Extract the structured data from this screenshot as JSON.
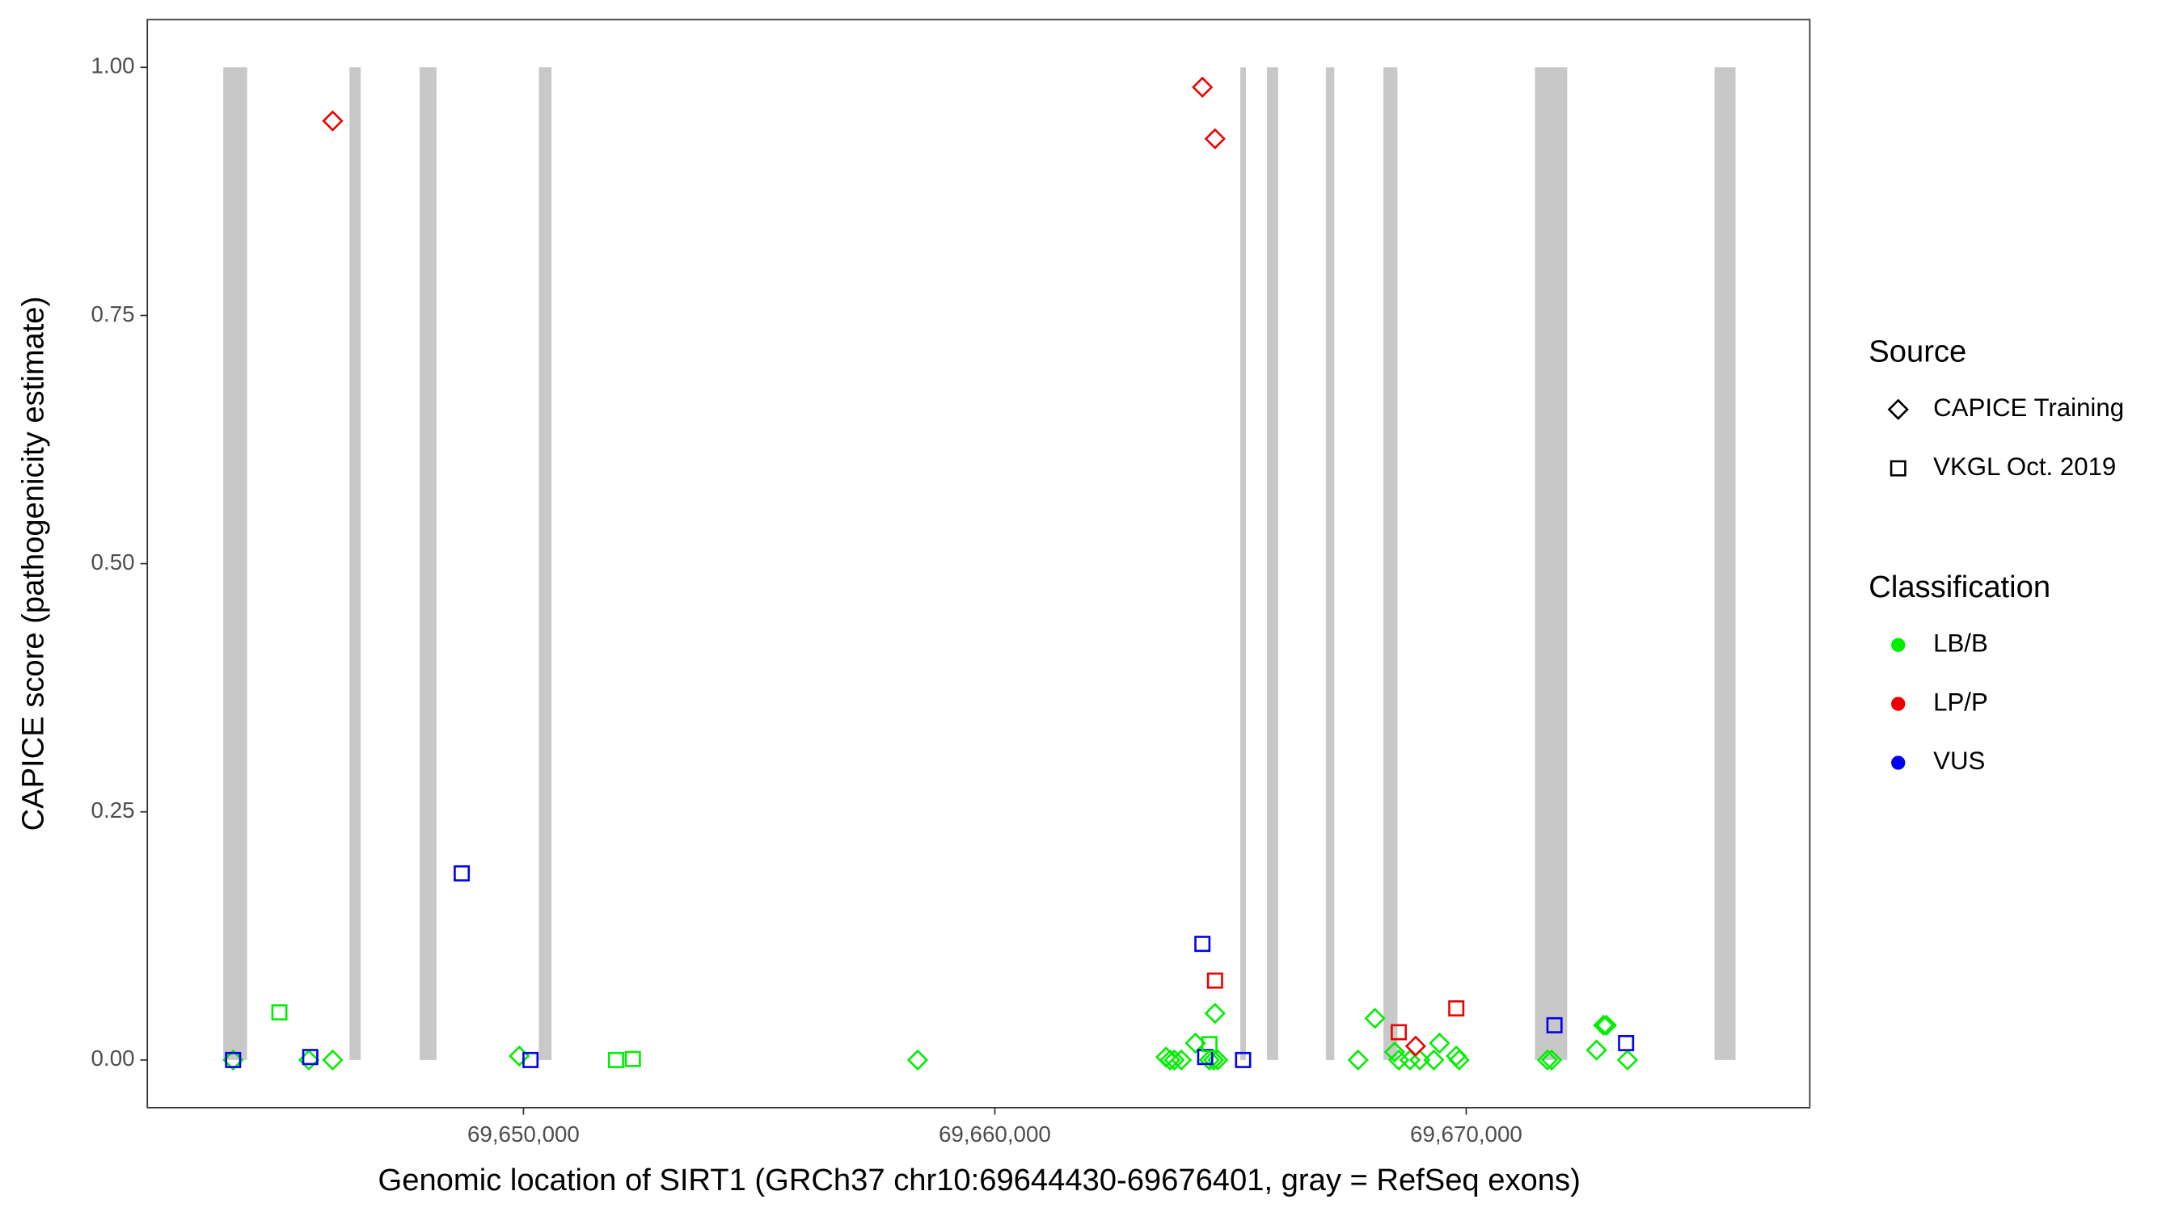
{
  "chart_data": {
    "type": "scatter",
    "x_label": "Genomic location of SIRT1 (GRCh37 chr10:69644430-69676401, gray = RefSeq exons)",
    "y_label": "CAPICE score (pathogenicity estimate)",
    "xlim": [
      69642020,
      69677290
    ],
    "ylim": [
      -0.048,
      1.048
    ],
    "xticks": [
      {
        "value": 69650000,
        "label": "69,650,000"
      },
      {
        "value": 69660000,
        "label": "69,660,000"
      },
      {
        "value": 69670000,
        "label": "69,670,000"
      }
    ],
    "yticks": [
      {
        "value": 0,
        "label": "0.00"
      },
      {
        "value": 0.25,
        "label": "0.25"
      },
      {
        "value": 0.5,
        "label": "0.50"
      },
      {
        "value": 0.75,
        "label": "0.75"
      },
      {
        "value": 1,
        "label": "1.00"
      }
    ],
    "grid": false,
    "exon_color": "#c8c8c8",
    "exons": [
      {
        "start": 69643631,
        "end": 69644137
      },
      {
        "start": 69646310,
        "end": 69646548
      },
      {
        "start": 69647798,
        "end": 69648155
      },
      {
        "start": 69650327,
        "end": 69650595
      },
      {
        "start": 69665208,
        "end": 69665327
      },
      {
        "start": 69665774,
        "end": 69666012
      },
      {
        "start": 69667024,
        "end": 69667202
      },
      {
        "start": 69668244,
        "end": 69668542
      },
      {
        "start": 69671458,
        "end": 69672143
      },
      {
        "start": 69675268,
        "end": 69675714
      }
    ],
    "source_legend": {
      "title": "Source",
      "items": [
        {
          "name": "CAPICE Training",
          "shape": "diamond"
        },
        {
          "name": "VKGL Oct. 2019",
          "shape": "square"
        }
      ]
    },
    "classification_legend": {
      "title": "Classification",
      "items": [
        {
          "name": "LB/B",
          "color": "#00ee00"
        },
        {
          "name": "LP/P",
          "color": "#ee0000"
        },
        {
          "name": "VUS",
          "color": "#0000ee"
        }
      ]
    },
    "series": [
      {
        "source": "CAPICE Training",
        "classification": "LB/B",
        "x": [
          69643840,
          69645447,
          69645953,
          69649911,
          69658363,
          69663630,
          69663719,
          69663808,
          69663957,
          69664255,
          69664553,
          69664642,
          69664672,
          69664731,
          69667707,
          69668064,
          69668481,
          69668570,
          69668808,
          69669017,
          69669314,
          69669433,
          69669790,
          69669850,
          69671724,
          69671813,
          69672766,
          69672915,
          69672975,
          69673422
        ],
        "values": [
          0,
          0,
          0,
          0.004,
          0,
          0.003,
          0,
          0,
          0,
          0.017,
          0,
          0,
          0.047,
          0,
          0,
          0.042,
          0.008,
          0,
          0,
          0,
          0,
          0.017,
          0.004,
          0,
          0,
          0,
          0.01,
          0.035,
          0.035,
          0
        ]
      },
      {
        "source": "CAPICE Training",
        "classification": "LP/P",
        "x": [
          69645953,
          69664404,
          69664672,
          69668927
        ],
        "values": [
          0.946,
          0.98,
          0.928,
          0.014
        ]
      },
      {
        "source": "VKGL Oct. 2019",
        "classification": "VUS",
        "x": [
          69643840,
          69645477,
          69648691,
          69650149,
          69664404,
          69664463,
          69665267,
          69671873,
          69673392
        ],
        "values": [
          0,
          0.003,
          0.188,
          0,
          0.117,
          0.003,
          0,
          0.035,
          0.017
        ]
      },
      {
        "source": "VKGL Oct. 2019",
        "classification": "LB/B",
        "x": [
          69644822,
          69651964,
          69652321,
          69664553
        ],
        "values": [
          0.048,
          0,
          0.001,
          0.016
        ]
      },
      {
        "source": "VKGL Oct. 2019",
        "classification": "LP/P",
        "x": [
          69664672,
          69668570,
          69669790
        ],
        "values": [
          0.08,
          0.028,
          0.052
        ]
      }
    ]
  }
}
